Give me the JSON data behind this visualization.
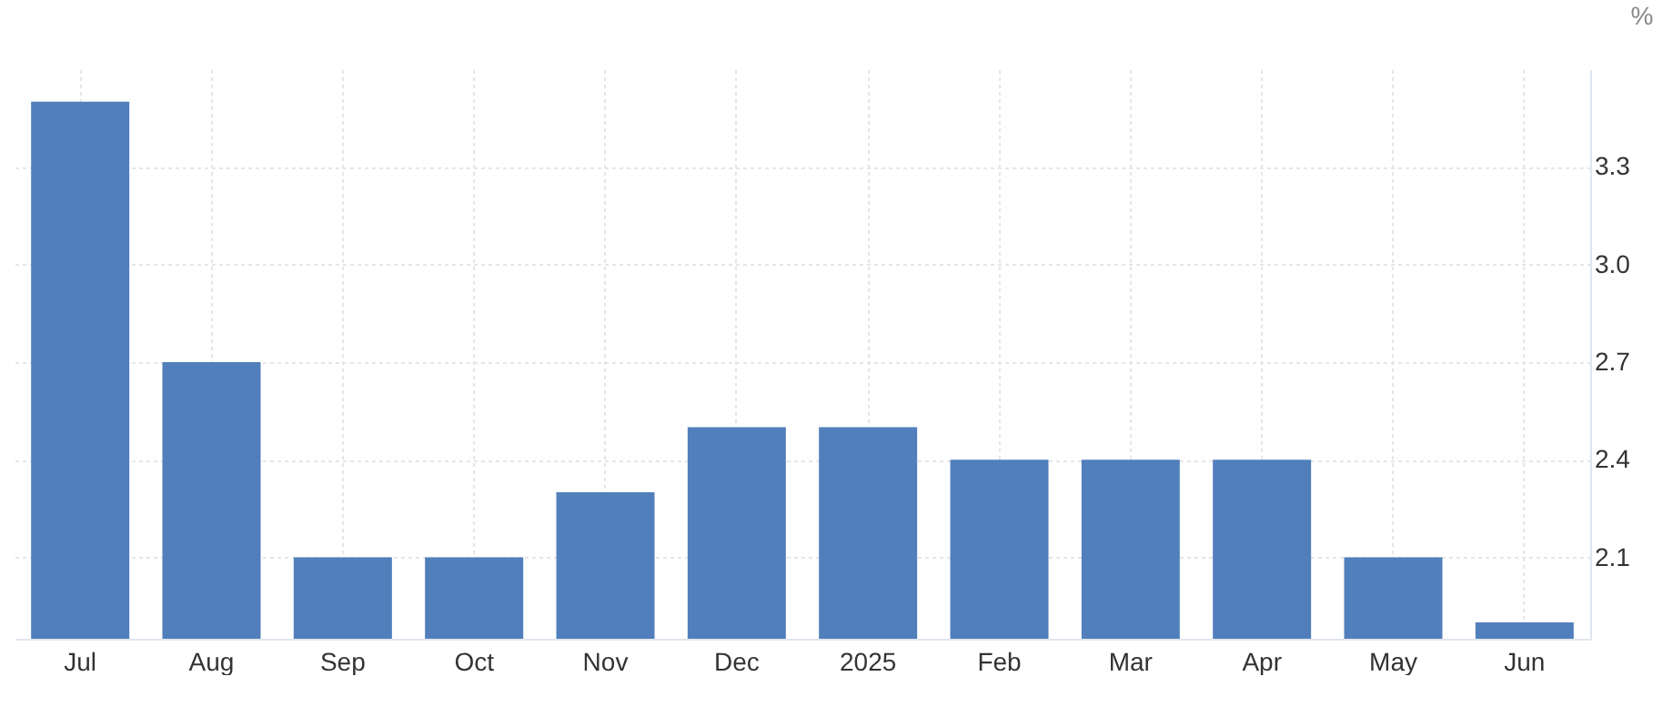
{
  "chart_data": {
    "type": "bar",
    "ylabel": "%",
    "categories": [
      "Jul",
      "Aug",
      "Sep",
      "Oct",
      "Nov",
      "Dec",
      "2025",
      "Feb",
      "Mar",
      "Apr",
      "May",
      "Jun"
    ],
    "values": [
      3.5,
      2.7,
      2.1,
      2.1,
      2.3,
      2.5,
      2.5,
      2.4,
      2.4,
      2.4,
      2.1,
      1.9
    ],
    "color": "#517fbc",
    "ylim": [
      1.85,
      3.6
    ],
    "yticks": [
      2.1,
      2.4,
      2.7,
      {
        "value": 3.0,
        "label": "3.0"
      },
      3.3
    ],
    "grid": true
  }
}
